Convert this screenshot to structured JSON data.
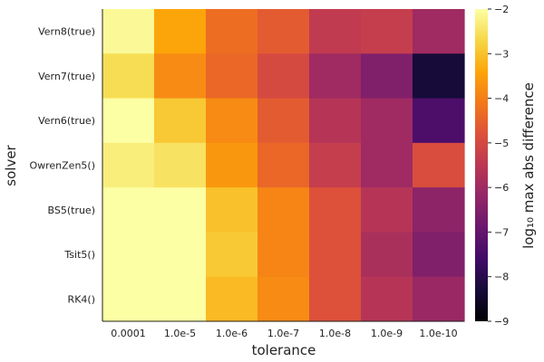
{
  "chart_data": {
    "type": "heatmap",
    "xlabel": "tolerance",
    "ylabel": "solver",
    "colorbar_label": "log₁₀ max abs difference",
    "x_categories": [
      "0.0001",
      "1.0e-5",
      "1.0e-6",
      "1.0e-7",
      "1.0e-8",
      "1.0e-9",
      "1.0e-10"
    ],
    "y_categories": [
      "Vern8(true)",
      "Vern7(true)",
      "Vern6(true)",
      "OwrenZen5()",
      "BS5(true)",
      "Tsit5()",
      "RK4()"
    ],
    "values": [
      [
        -2.1,
        -3.4,
        -4.3,
        -4.6,
        -5.4,
        -5.3,
        -6.0
      ],
      [
        -2.6,
        -3.8,
        -4.4,
        -5.0,
        -6.0,
        -6.5,
        -8.3
      ],
      [
        -2.0,
        -2.9,
        -3.8,
        -4.6,
        -5.6,
        -6.0,
        -7.4
      ],
      [
        -2.3,
        -2.5,
        -3.6,
        -4.4,
        -5.3,
        -6.0,
        -4.9
      ],
      [
        -2.0,
        -2.0,
        -3.0,
        -3.9,
        -4.8,
        -5.6,
        -6.3
      ],
      [
        -2.0,
        -2.0,
        -2.9,
        -3.9,
        -4.8,
        -5.8,
        -6.5
      ],
      [
        -2.0,
        -2.0,
        -3.1,
        -3.8,
        -4.8,
        -5.6,
        -6.1
      ]
    ],
    "colorbar": {
      "range": [
        -9,
        -2
      ],
      "ticks": [
        "−9",
        "−8",
        "−7",
        "−6",
        "−5",
        "−4",
        "−3",
        "−2"
      ],
      "colormap": "inferno"
    }
  }
}
